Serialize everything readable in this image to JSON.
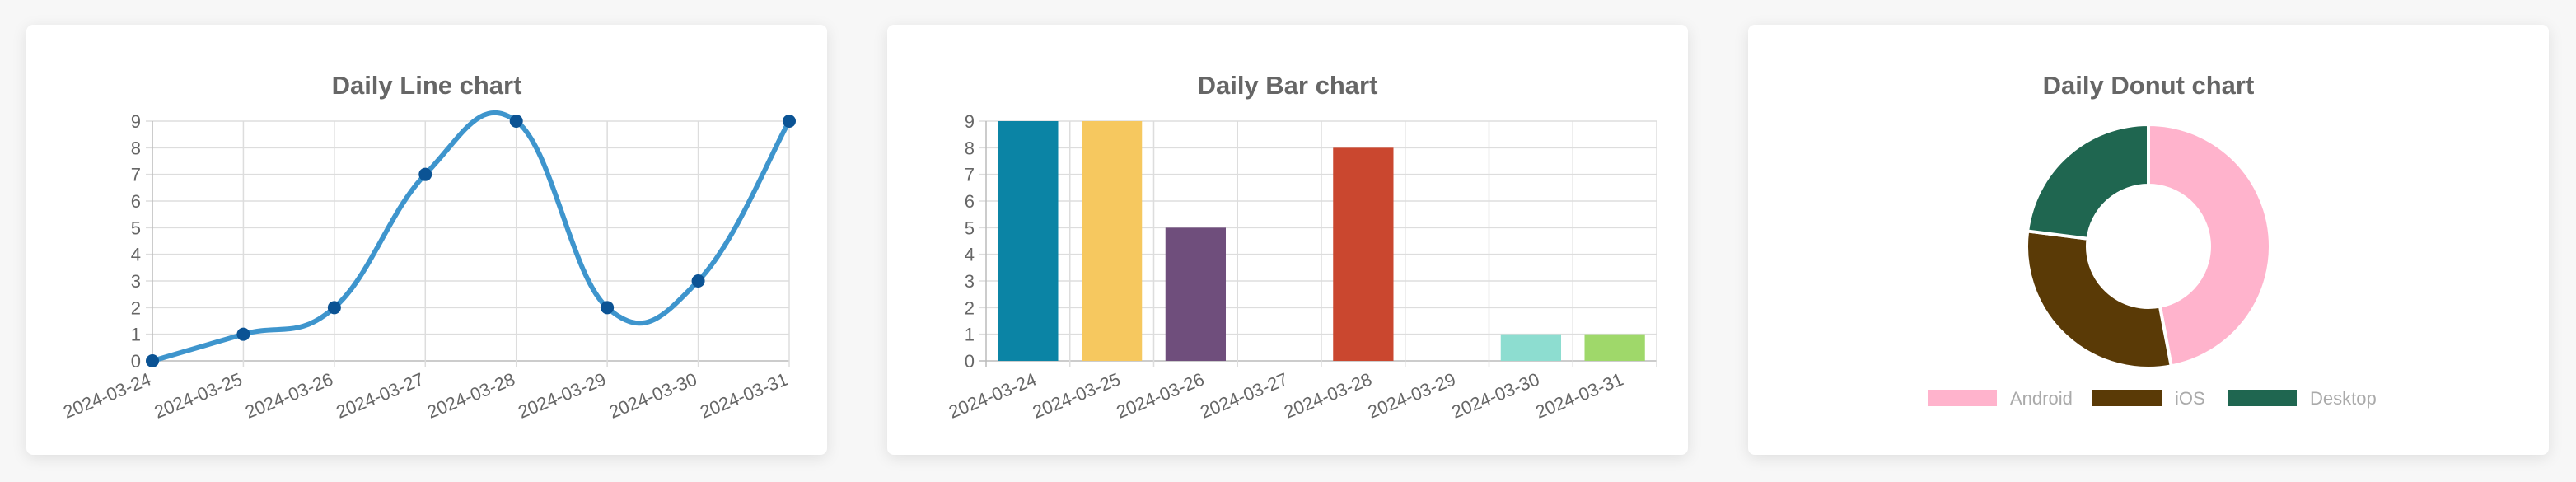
{
  "cards": {
    "line": {
      "title": "Daily Line chart"
    },
    "bar": {
      "title": "Daily Bar chart"
    },
    "donut": {
      "title": "Daily Donut chart"
    }
  },
  "colors": {
    "line": "#3e95cd",
    "point": "#0b5394",
    "grid": "#dddddd",
    "axis": "#bbbbbb",
    "tick": "#666666",
    "legend_text": "#aaaaaa"
  },
  "chart_data": [
    {
      "type": "line",
      "title": "Daily Line chart",
      "x": [
        "2024-03-24",
        "2024-03-25",
        "2024-03-26",
        "2024-03-27",
        "2024-03-28",
        "2024-03-29",
        "2024-03-30",
        "2024-03-31"
      ],
      "values": [
        0,
        1,
        2,
        7,
        9,
        2,
        3,
        9
      ],
      "ylim": [
        0,
        9
      ],
      "yticks": [
        0,
        1,
        2,
        3,
        4,
        5,
        6,
        7,
        8,
        9
      ],
      "grid": true,
      "legend": "none"
    },
    {
      "type": "bar",
      "title": "Daily Bar chart",
      "categories": [
        "2024-03-24",
        "2024-03-25",
        "2024-03-26",
        "2024-03-27",
        "2024-03-28",
        "2024-03-29",
        "2024-03-30",
        "2024-03-31"
      ],
      "values": [
        9,
        9,
        5,
        0,
        8,
        0,
        1,
        1
      ],
      "colors": [
        "#0b84a5",
        "#f6c85f",
        "#6f4e7c",
        "#9dd866",
        "#ca472f",
        "#ffa056",
        "#8dddd0",
        "#9fd86a"
      ],
      "ylim": [
        0,
        9
      ],
      "yticks": [
        0,
        1,
        2,
        3,
        4,
        5,
        6,
        7,
        8,
        9
      ],
      "grid": true,
      "legend": "none"
    },
    {
      "type": "pie",
      "title": "Daily Donut chart",
      "donut": true,
      "labels": [
        "Android",
        "iOS",
        "Desktop"
      ],
      "values": [
        47,
        30,
        23
      ],
      "colors": [
        "#ffb3cc",
        "#5a3a06",
        "#1f6650"
      ],
      "legend": "bottom"
    }
  ]
}
